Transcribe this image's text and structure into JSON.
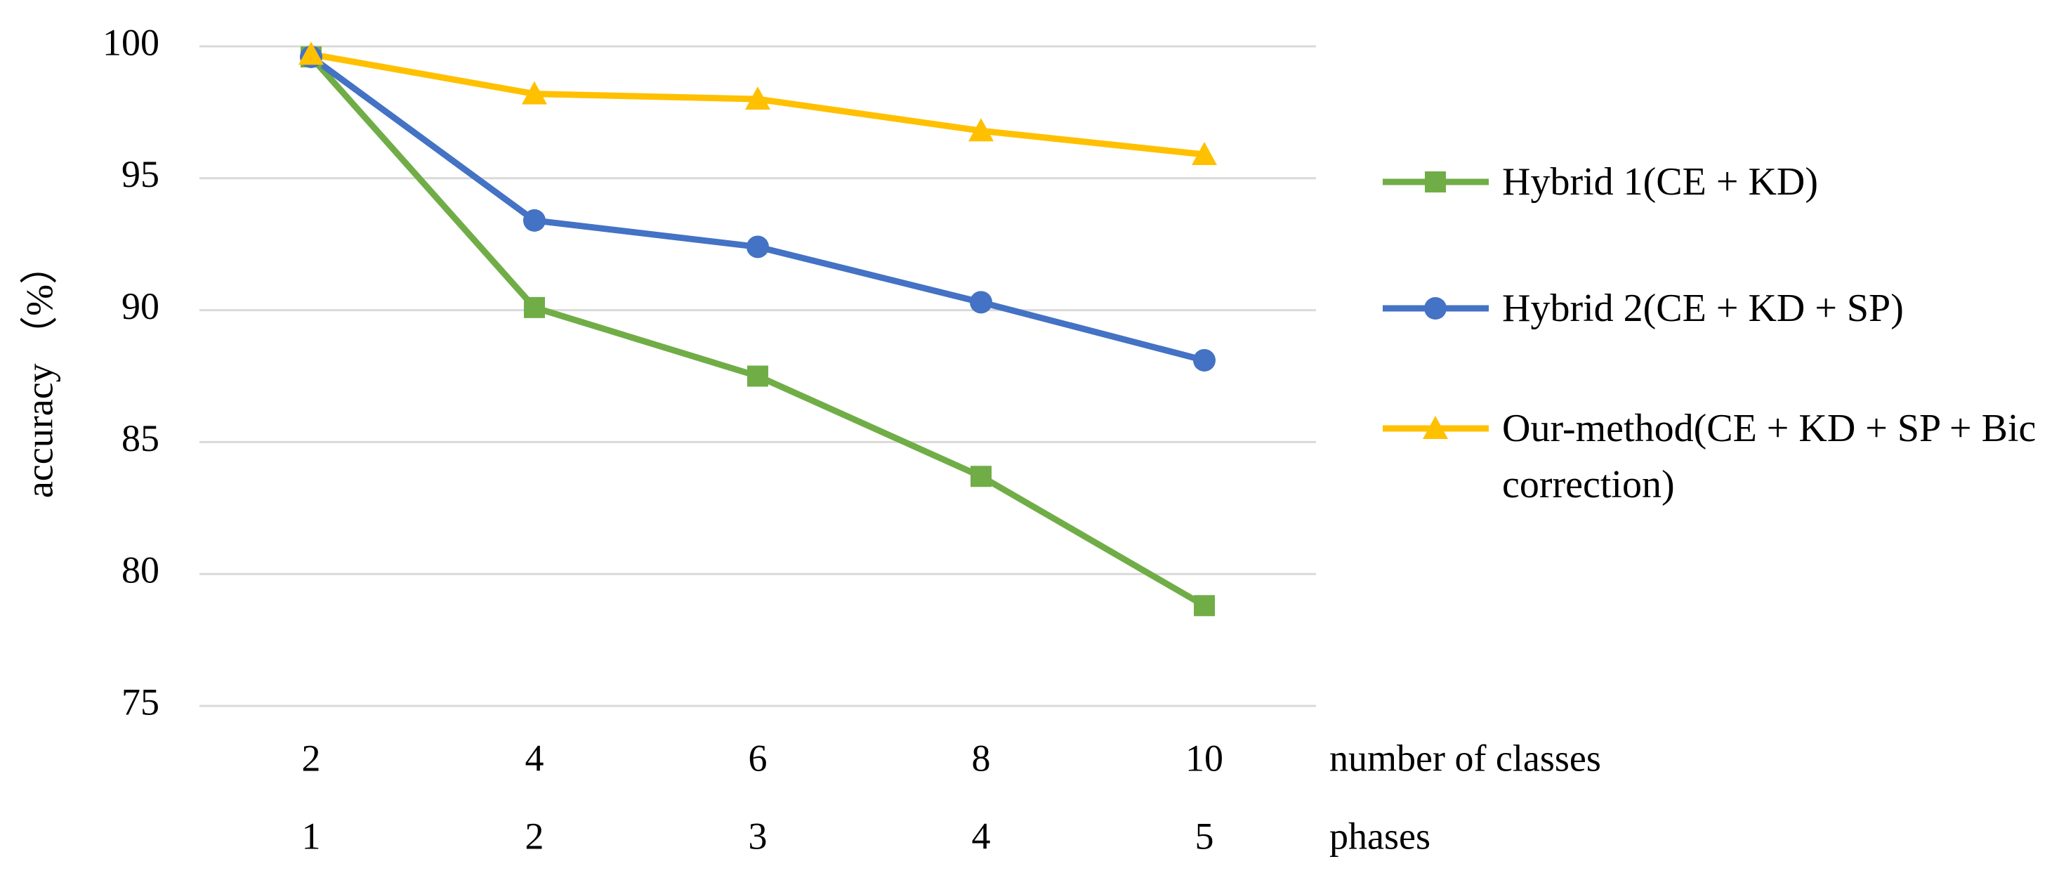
{
  "chart_data": {
    "type": "line",
    "y_label": "accuracy （%）",
    "categories": [
      "2",
      "4",
      "6",
      "8",
      "10"
    ],
    "categories_label": "number of classes",
    "phases": [
      "1",
      "2",
      "3",
      "4",
      "5"
    ],
    "phases_label": "phases",
    "ylim": [
      75,
      100
    ],
    "yticks": [
      75,
      80,
      85,
      90,
      95,
      100
    ],
    "grid": true,
    "legend": "right",
    "series": [
      {
        "name": "Hybrid 1(CE + KD)",
        "color": "#70ad47",
        "marker": "square",
        "values": [
          99.6,
          90.1,
          87.5,
          83.7,
          78.8
        ]
      },
      {
        "name": "Hybrid 2(CE + KD + SP)",
        "color": "#4472c4",
        "marker": "circle",
        "values": [
          99.6,
          93.4,
          92.4,
          90.3,
          88.1
        ]
      },
      {
        "name": "Our-method(CE + KD + SP + Bic correction)",
        "color": "#ffc000",
        "marker": "triangle",
        "values": [
          99.7,
          98.2,
          98.0,
          96.8,
          95.9
        ]
      }
    ]
  }
}
